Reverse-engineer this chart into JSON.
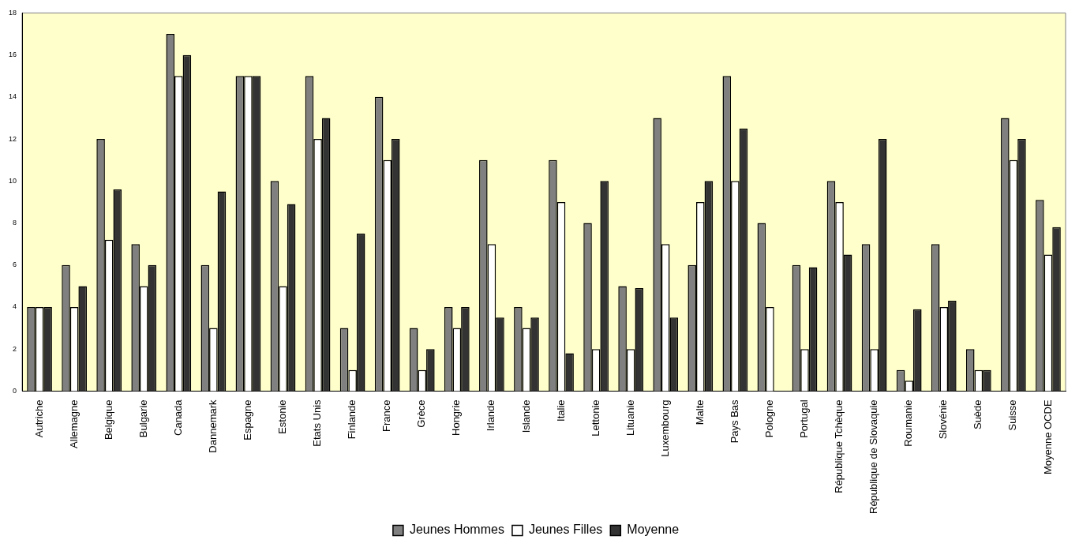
{
  "chart_data": {
    "type": "bar",
    "categories": [
      "Autriche",
      "Allemagne",
      "Belgique",
      "Bulgarie",
      "Canada",
      "Dannemark",
      "Espagne",
      "Estonie",
      "Etats Unis",
      "Finlande",
      "France",
      "Grèce",
      "Hongrie",
      "Irlande",
      "Islande",
      "Italie",
      "Lettonie",
      "Lituanie",
      "Luxembourg",
      "Malte",
      "Pays Bas",
      "Pologne",
      "Portugal",
      "République Tchèque",
      "République de Slovaquie",
      "Roumanie",
      "Slovénie",
      "Suède",
      "Suisse",
      "Moyenne OCDE"
    ],
    "series": [
      {
        "name": "Jeunes Hommes",
        "color": "#808080",
        "values": [
          4,
          6,
          12,
          7,
          17,
          6,
          15,
          10,
          15,
          3,
          14,
          3,
          4,
          11,
          4,
          11,
          8,
          5,
          13,
          6,
          15,
          8,
          6,
          10,
          7,
          1,
          7,
          2,
          13,
          9.1
        ]
      },
      {
        "name": "Jeunes Filles",
        "color": "#ffffff",
        "values": [
          4,
          4,
          7.2,
          5,
          15,
          3,
          15,
          5,
          12,
          1,
          11,
          1,
          3,
          7,
          3,
          9,
          2,
          2,
          7,
          9,
          10,
          4,
          2,
          9,
          2,
          0.5,
          4,
          1,
          11,
          6.5
        ]
      },
      {
        "name": "Moyenne",
        "color": "#333333",
        "values": [
          4,
          5,
          9.6,
          6,
          16,
          9.5,
          15,
          8.9,
          13,
          7.5,
          12,
          2,
          4,
          3.5,
          3.5,
          1.8,
          10,
          4.9,
          3.5,
          10,
          12.5,
          null,
          5.9,
          6.5,
          12,
          3.9,
          4.3,
          1,
          12,
          7.8
        ]
      }
    ],
    "ylim": [
      0,
      18
    ],
    "yticks": [
      0,
      2,
      4,
      6,
      8,
      10,
      12,
      14,
      16,
      18
    ],
    "grid": false,
    "legend": "bottom"
  }
}
